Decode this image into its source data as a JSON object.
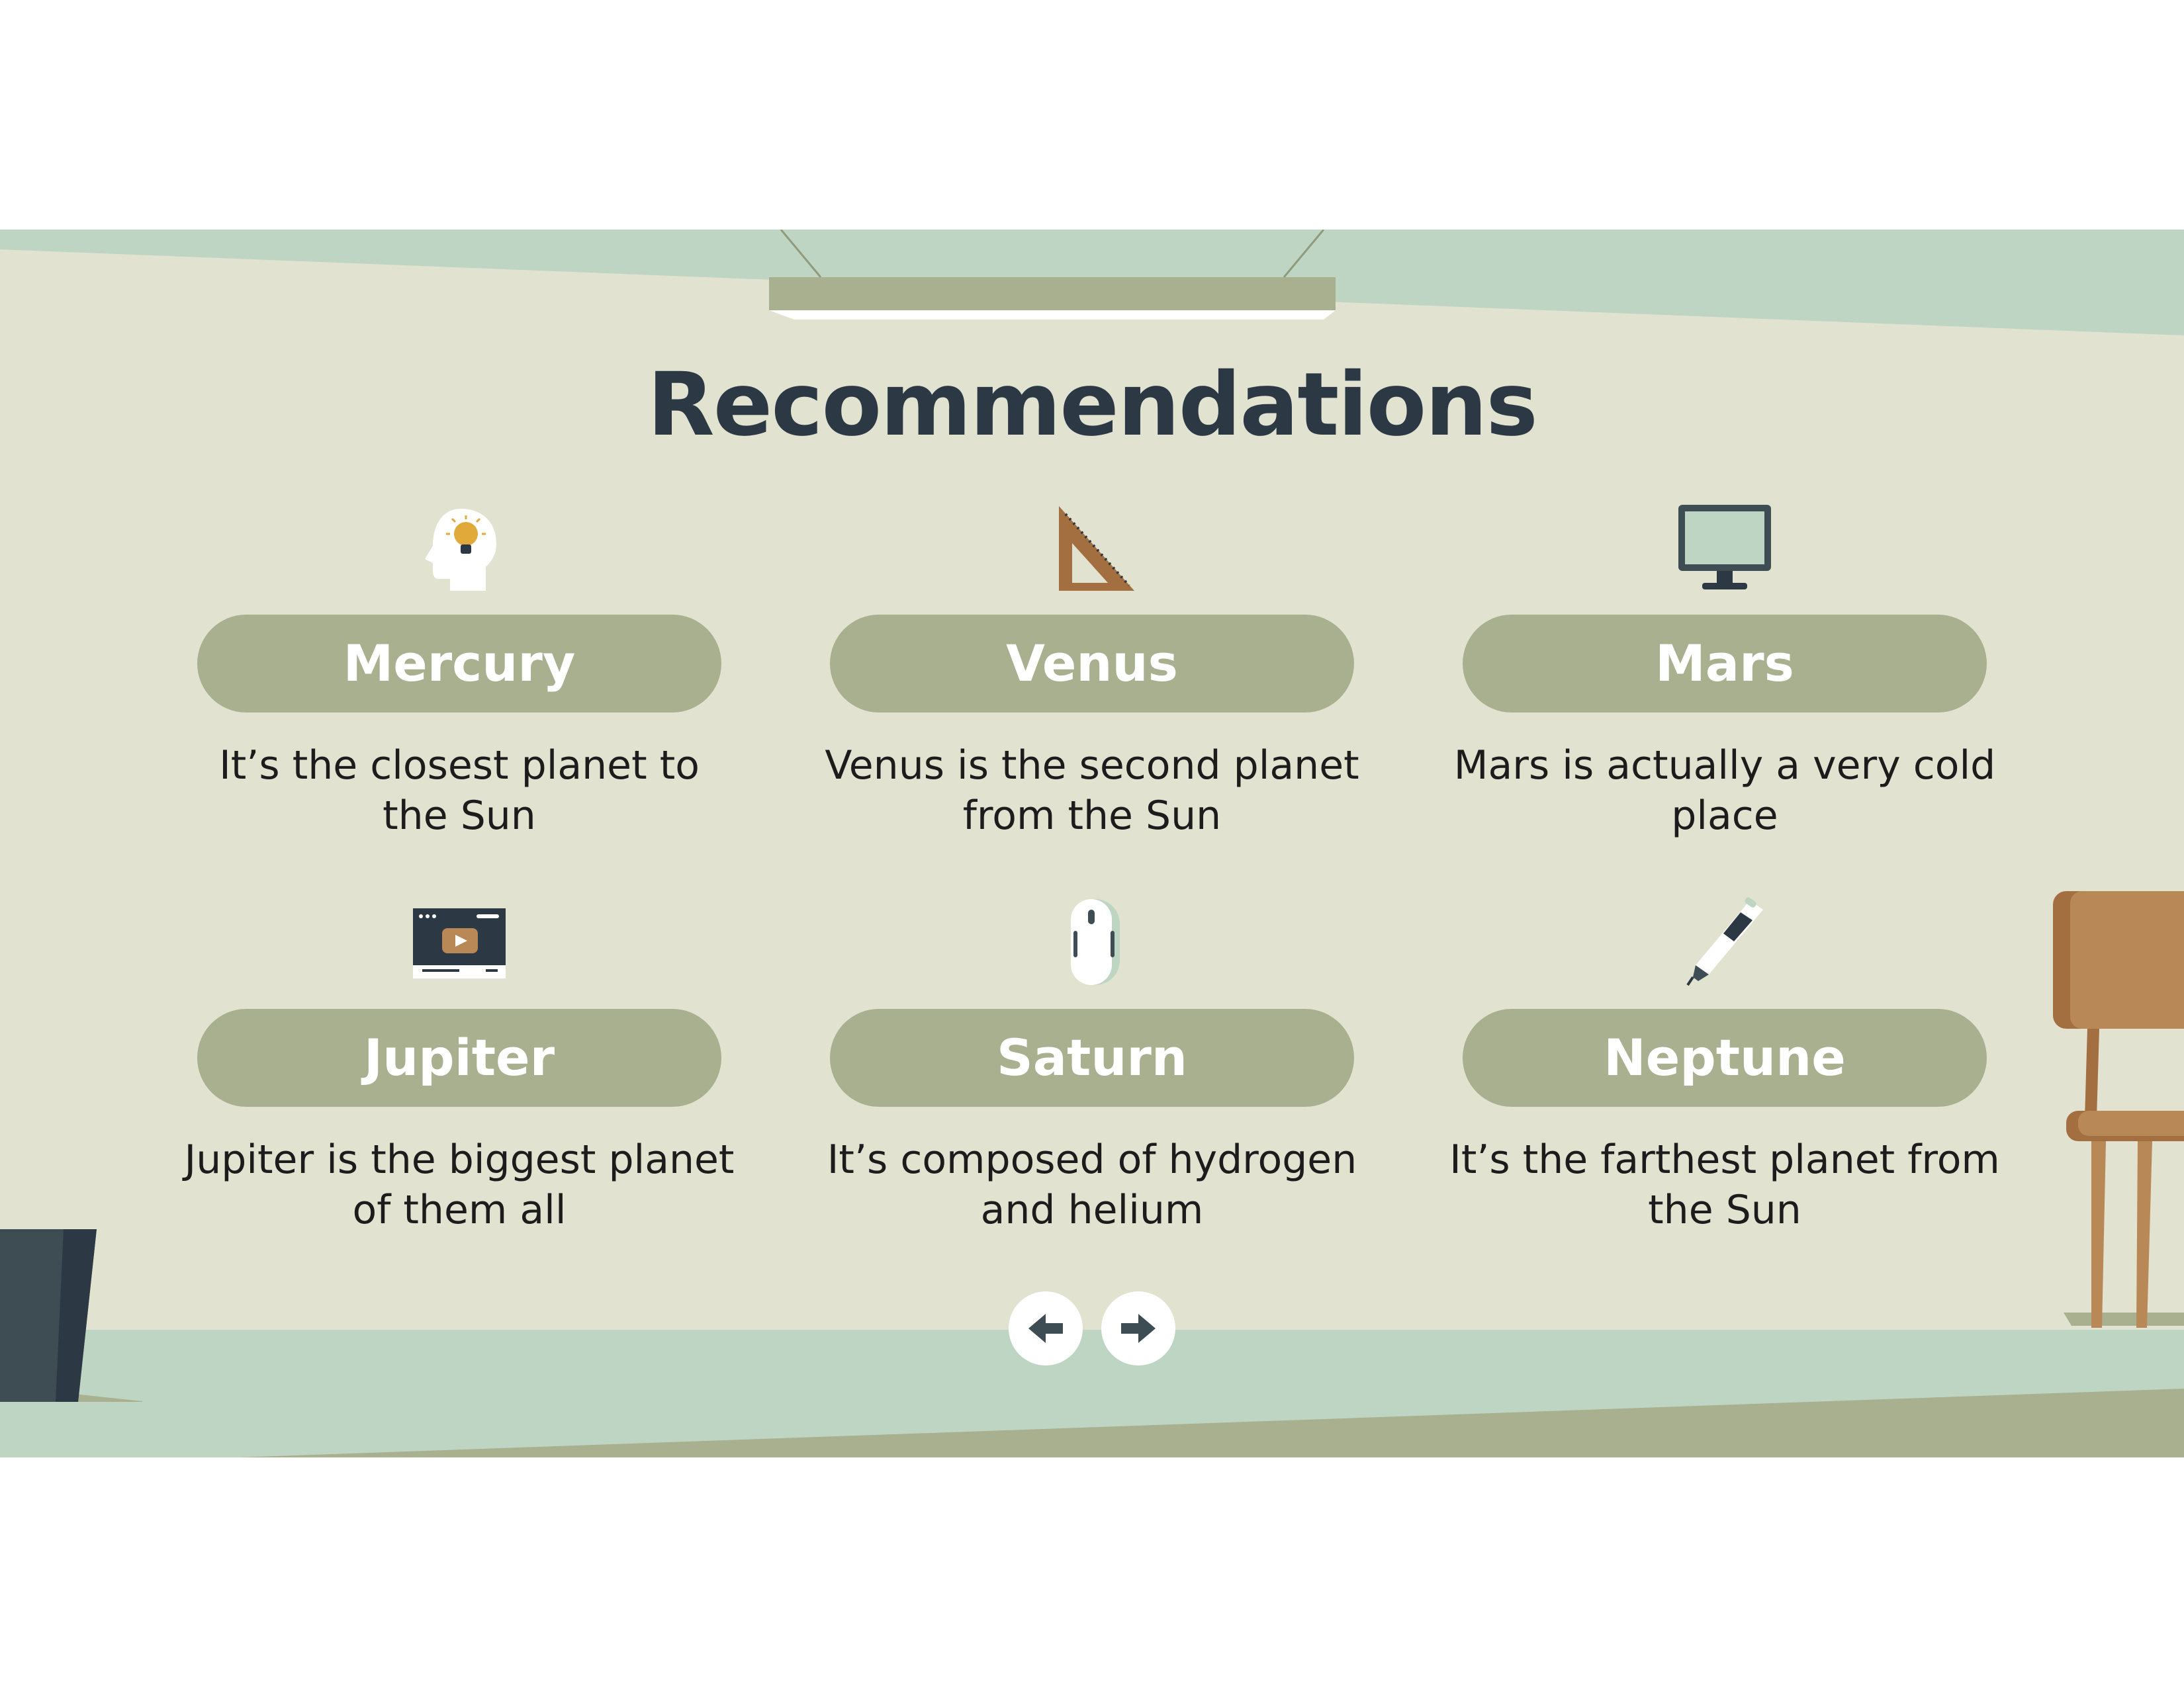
{
  "slide": {
    "title": "Recommendations"
  },
  "cards": [
    {
      "title": "Mercury",
      "description": "It’s the closest planet to the Sun",
      "icon": "lightbulb-head-icon"
    },
    {
      "title": "Venus",
      "description": "Venus is the second planet from the Sun",
      "icon": "set-square-ruler-icon"
    },
    {
      "title": "Mars",
      "description": "Mars is actually a very cold place",
      "icon": "monitor-icon"
    },
    {
      "title": "Jupiter",
      "description": "Jupiter is the biggest planet of them all",
      "icon": "video-player-window-icon"
    },
    {
      "title": "Saturn",
      "description": "It’s composed of hydrogen and helium",
      "icon": "computer-mouse-icon"
    },
    {
      "title": "Neptune",
      "description": "It’s the farthest planet from the Sun",
      "icon": "pen-icon"
    }
  ],
  "navigation": {
    "previous_icon": "arrow-left-icon",
    "next_icon": "arrow-right-icon"
  },
  "colors": {
    "background": "#e2e2d1",
    "pill": "#a9b08f",
    "title": "#2c3944",
    "floor": "#bfd5c3",
    "wood": "#b98857"
  }
}
